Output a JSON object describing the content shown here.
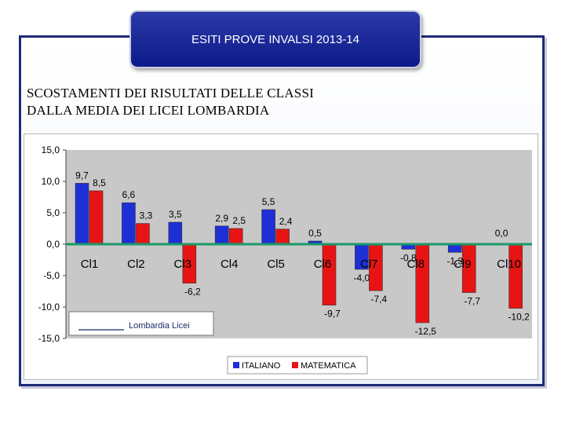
{
  "header": {
    "title": "ESITI PROVE INVALSI 2013-14"
  },
  "subtitle": {
    "line1": "SCOSTAMENTI DEI RISULTATI DELLE CLASSI",
    "line2": "DALLA MEDIA DEI LICEI LOMBARDIA"
  },
  "colors": {
    "italiano": "#1f2fd6",
    "matematica": "#e81414",
    "reference": "#1a9a6a",
    "title_bg": "#0c1a8a"
  },
  "chart_data": {
    "type": "bar",
    "title": "",
    "xlabel": "",
    "ylabel": "",
    "categories": [
      "Cl1",
      "Cl2",
      "Cl3",
      "Cl4",
      "Cl5",
      "Cl6",
      "Cl7",
      "Cl8",
      "Cl9",
      "Cl10"
    ],
    "series": [
      {
        "name": "ITALIANO",
        "values": [
          9.7,
          6.6,
          3.5,
          2.9,
          5.5,
          0.5,
          -4.0,
          -0.8,
          -1.3,
          0.0
        ]
      },
      {
        "name": "MATEMATICA",
        "values": [
          8.5,
          3.3,
          -6.2,
          2.5,
          2.4,
          -9.7,
          -7.4,
          -12.5,
          -7.7,
          -10.2
        ]
      }
    ],
    "data_labels": {
      "ITALIANO": [
        "9,7",
        "6,6",
        "3,5",
        "2,9",
        "5,5",
        "0,5",
        "-4,0",
        "-0,8",
        "-1,3",
        "0,0"
      ],
      "MATEMATICA": [
        "8,5",
        "3,3",
        "-6,2",
        "2,5",
        "2,4",
        "-9,7",
        "-7,4",
        "-12,5",
        "-7,7",
        "-10,2"
      ]
    },
    "ylim": [
      -15,
      15
    ],
    "yticks": [
      15,
      10,
      5,
      0,
      -5,
      -10,
      -15
    ],
    "ytick_labels": [
      "15,0",
      "10,0",
      "5,0",
      "0,0",
      "-5,0",
      "-10,0",
      "-15,0"
    ],
    "grid": false,
    "reference_line": {
      "label": "Lombardia Licei",
      "value": 0
    },
    "legend": {
      "position": "bottom",
      "items": [
        "ITALIANO",
        "MATEMATICA"
      ]
    }
  }
}
